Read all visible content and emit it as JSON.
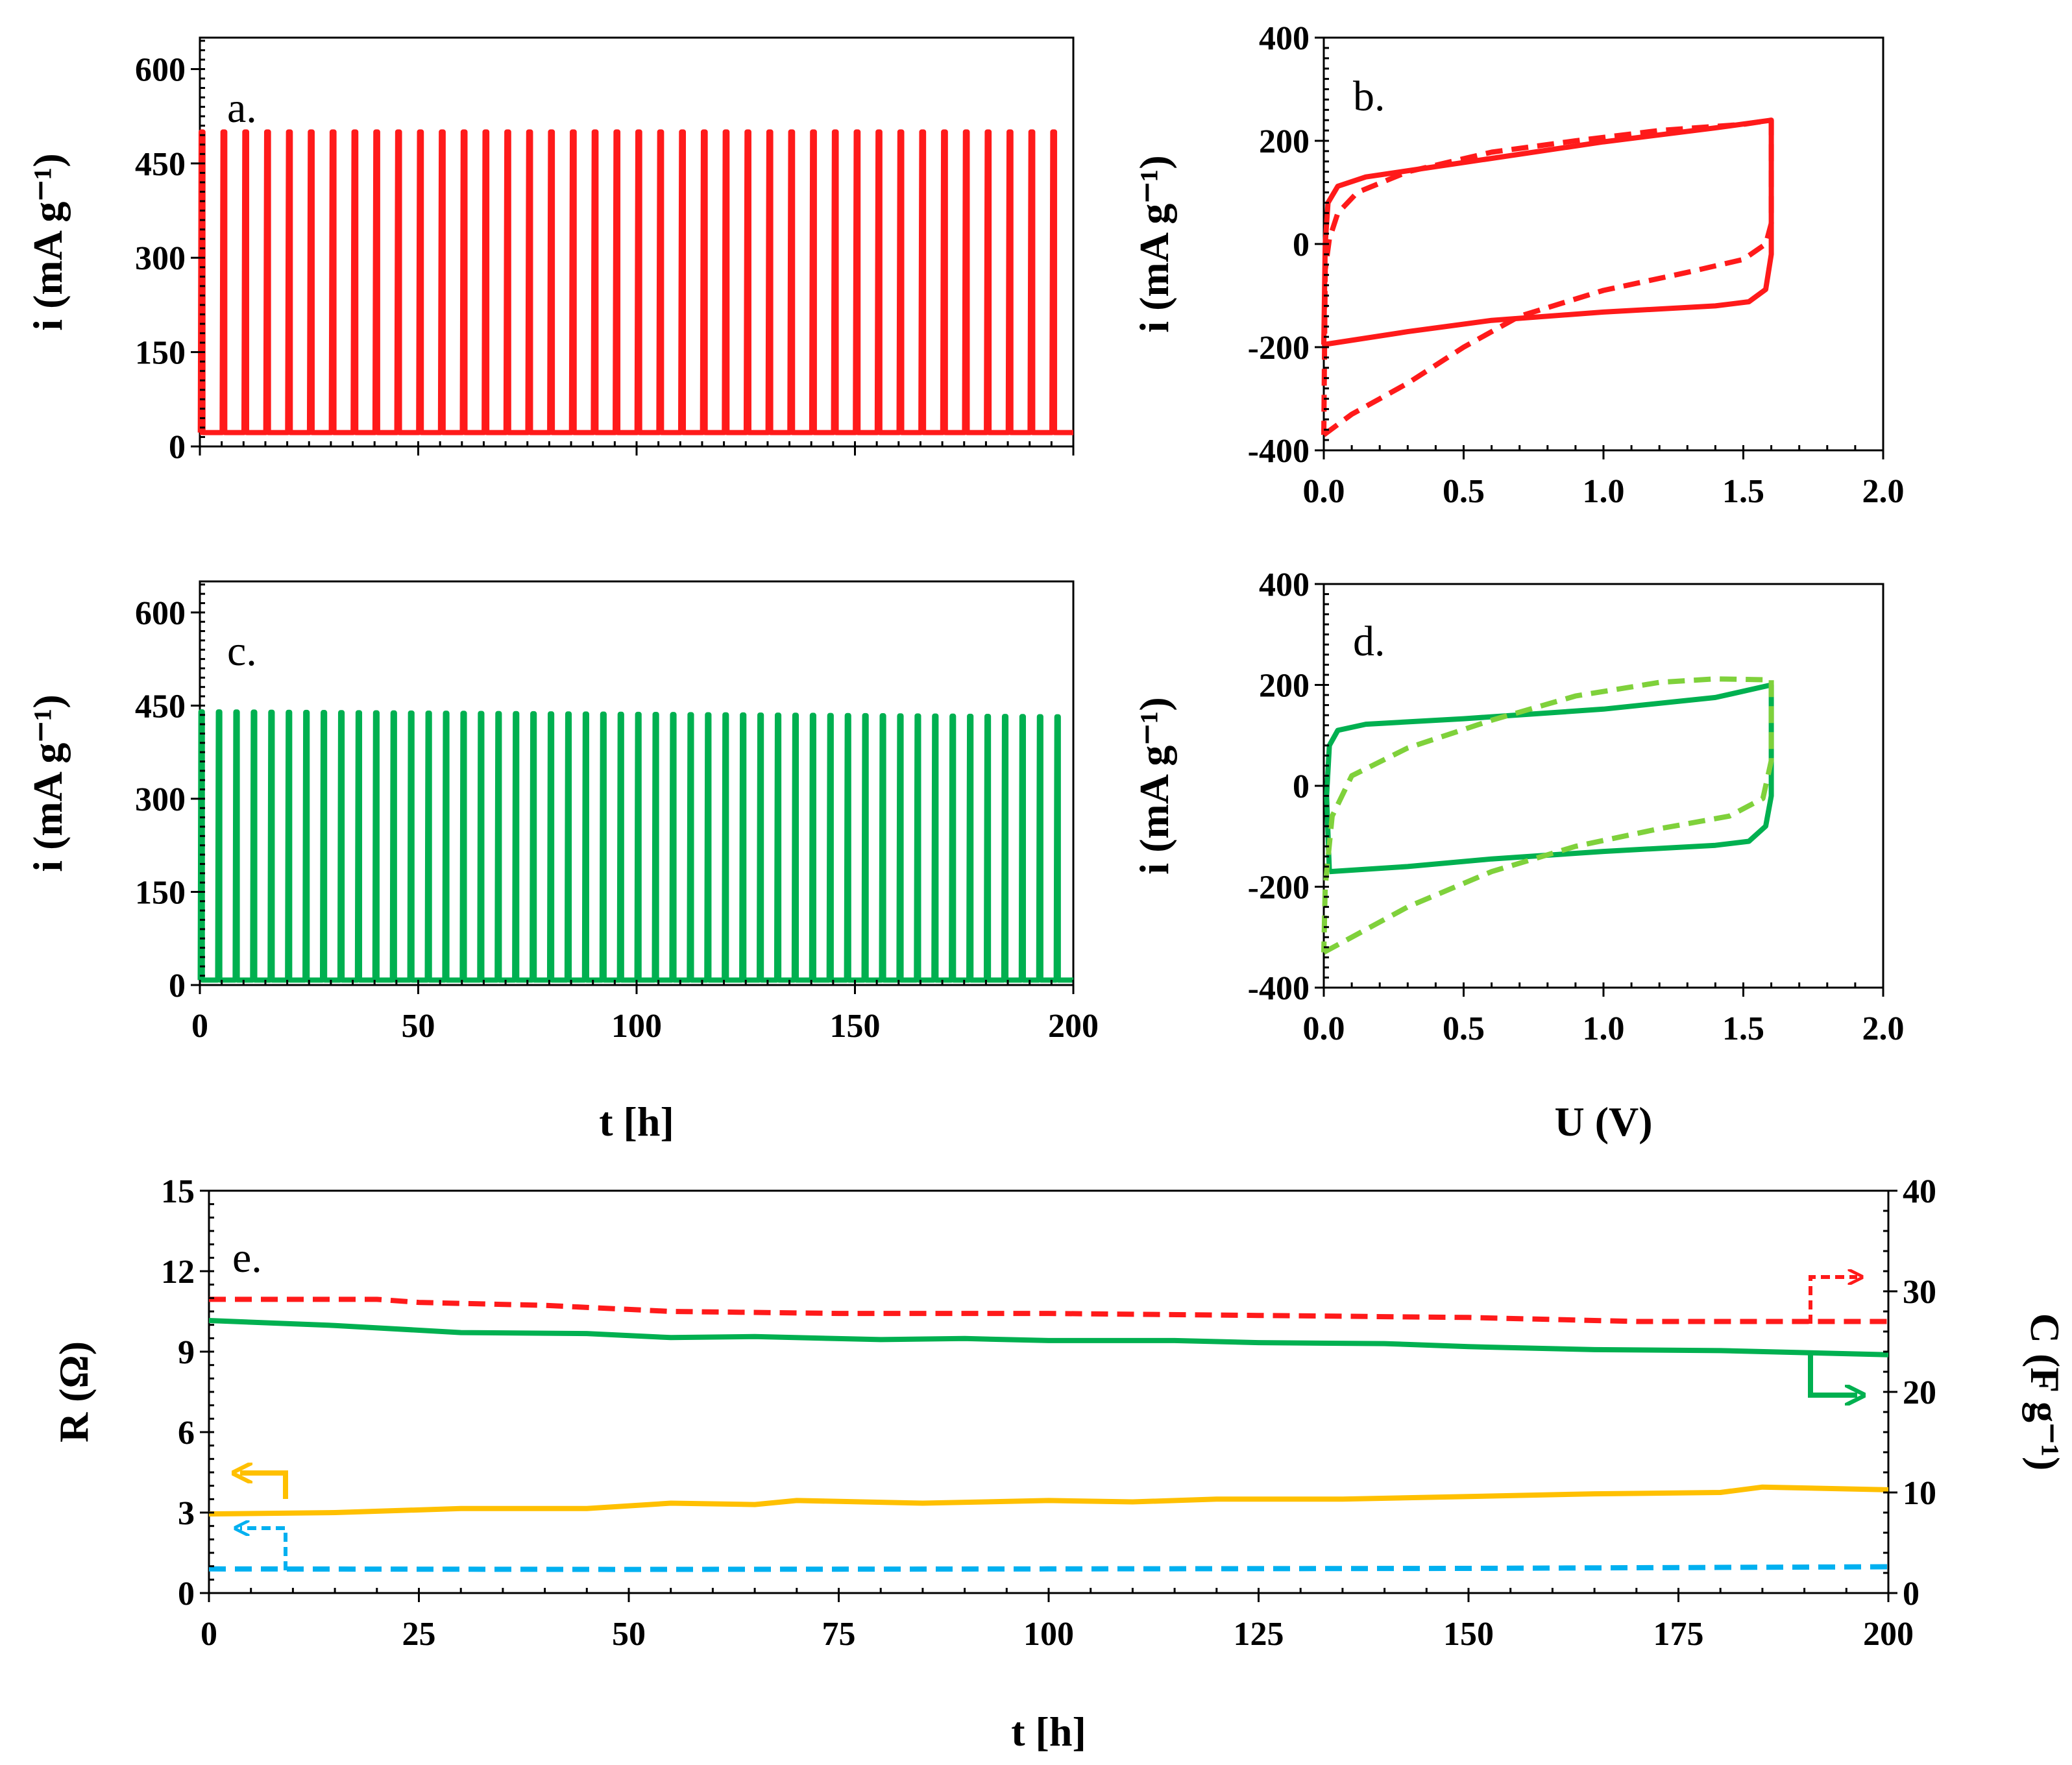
{
  "chart_data": [
    {
      "panel": "a.",
      "type": "line",
      "xlabel": "",
      "ylabel": "i (mA g⁻¹)",
      "xlim": [
        0,
        200
      ],
      "ylim": [
        0,
        650
      ],
      "xticks": [],
      "yticks": [
        "0",
        "150",
        "300",
        "450",
        "600"
      ],
      "color": "#ff1a1a",
      "series": [
        {
          "style": "solid",
          "waveform": {
            "pulses": 40,
            "high": 500,
            "low": 22,
            "t_start": 0,
            "t_end": 200
          }
        }
      ]
    },
    {
      "panel": "b.",
      "type": "line",
      "xlabel": "",
      "ylabel": "i (mA g⁻¹)",
      "xlim": [
        0,
        2.0
      ],
      "ylim": [
        -400,
        400
      ],
      "xticks": [
        "0.0",
        "0.5",
        "1.0",
        "1.5",
        "2.0"
      ],
      "yticks": [
        "-400",
        "-200",
        "0",
        "200",
        "400"
      ],
      "color": "#ff1a1a",
      "series": [
        {
          "style": "solid",
          "points": [
            [
              0.0,
              -195
            ],
            [
              0.3,
              -170
            ],
            [
              0.6,
              -148
            ],
            [
              1.0,
              -132
            ],
            [
              1.4,
              -120
            ],
            [
              1.52,
              -112
            ],
            [
              1.58,
              -88
            ],
            [
              1.6,
              -20
            ],
            [
              1.6,
              240
            ],
            [
              1.4,
              225
            ],
            [
              1.0,
              198
            ],
            [
              0.5,
              158
            ],
            [
              0.15,
              130
            ],
            [
              0.05,
              112
            ],
            [
              0.015,
              80
            ],
            [
              0.005,
              0
            ],
            [
              0.0,
              -195
            ]
          ]
        },
        {
          "style": "dashed",
          "points": [
            [
              0.0,
              -370
            ],
            [
              0.1,
              -330
            ],
            [
              0.3,
              -270
            ],
            [
              0.5,
              -200
            ],
            [
              0.7,
              -140
            ],
            [
              1.0,
              -90
            ],
            [
              1.3,
              -55
            ],
            [
              1.5,
              -30
            ],
            [
              1.58,
              0
            ],
            [
              1.6,
              40
            ],
            [
              1.6,
              240
            ],
            [
              1.5,
              232
            ],
            [
              1.2,
              220
            ],
            [
              0.9,
              200
            ],
            [
              0.6,
              178
            ],
            [
              0.3,
              140
            ],
            [
              0.12,
              100
            ],
            [
              0.05,
              60
            ],
            [
              0.02,
              10
            ],
            [
              0.005,
              -50
            ],
            [
              0.0,
              -370
            ]
          ]
        }
      ]
    },
    {
      "panel": "c.",
      "type": "line",
      "xlabel": "t [h]",
      "ylabel": "i (mA g⁻¹)",
      "xlim": [
        0,
        200
      ],
      "ylim": [
        0,
        650
      ],
      "xticks": [
        "0",
        "50",
        "100",
        "150",
        "200"
      ],
      "yticks": [
        "0",
        "150",
        "300",
        "450",
        "600"
      ],
      "color": "#00b050",
      "series": [
        {
          "style": "solid",
          "waveform": {
            "pulses": 50,
            "high_start": 440,
            "high_end": 432,
            "low": 8,
            "t_start": 0,
            "t_end": 200
          }
        }
      ]
    },
    {
      "panel": "d.",
      "type": "line",
      "xlabel": "U (V)",
      "ylabel": "i (mA g⁻¹)",
      "xlim": [
        0,
        2.0
      ],
      "ylim": [
        -400,
        400
      ],
      "xticks": [
        "0.0",
        "0.5",
        "1.0",
        "1.5",
        "2.0"
      ],
      "yticks": [
        "-400",
        "-200",
        "0",
        "200",
        "400"
      ],
      "series": [
        {
          "style": "solid",
          "color": "#00b050",
          "points": [
            [
              0.02,
              -170
            ],
            [
              0.3,
              -160
            ],
            [
              0.6,
              -145
            ],
            [
              1.0,
              -130
            ],
            [
              1.4,
              -118
            ],
            [
              1.52,
              -110
            ],
            [
              1.58,
              -80
            ],
            [
              1.6,
              -20
            ],
            [
              1.6,
              200
            ],
            [
              1.4,
              175
            ],
            [
              1.0,
              152
            ],
            [
              0.5,
              133
            ],
            [
              0.15,
              122
            ],
            [
              0.05,
              110
            ],
            [
              0.02,
              80
            ],
            [
              0.01,
              -20
            ],
            [
              0.02,
              -170
            ]
          ]
        },
        {
          "style": "dashed",
          "color": "#7fd13b",
          "points": [
            [
              0.0,
              -330
            ],
            [
              0.1,
              -300
            ],
            [
              0.3,
              -240
            ],
            [
              0.6,
              -170
            ],
            [
              0.9,
              -120
            ],
            [
              1.2,
              -85
            ],
            [
              1.45,
              -60
            ],
            [
              1.57,
              -25
            ],
            [
              1.6,
              50
            ],
            [
              1.6,
              210
            ],
            [
              1.4,
              212
            ],
            [
              1.2,
              205
            ],
            [
              0.9,
              178
            ],
            [
              0.6,
              130
            ],
            [
              0.3,
              75
            ],
            [
              0.1,
              20
            ],
            [
              0.03,
              -60
            ],
            [
              0.005,
              -200
            ],
            [
              0.0,
              -330
            ]
          ]
        }
      ]
    },
    {
      "panel": "e.",
      "type": "line",
      "xlabel": "t [h]",
      "ylabel": "R (Ω)",
      "y2label": "C (F g⁻¹)",
      "xlim": [
        0,
        200
      ],
      "ylim": [
        0,
        15
      ],
      "y2lim": [
        0,
        40
      ],
      "xticks": [
        "0",
        "25",
        "50",
        "75",
        "100",
        "125",
        "150",
        "175",
        "200"
      ],
      "yticks": [
        "0",
        "3",
        "6",
        "9",
        "12",
        "15"
      ],
      "y2ticks": [
        "0",
        "10",
        "20",
        "30",
        "40"
      ],
      "series": [
        {
          "style": "dashed",
          "color": "#ff1a1a",
          "axis": "right",
          "points": [
            [
              0,
              29.2
            ],
            [
              20,
              29.2
            ],
            [
              25,
              28.9
            ],
            [
              40,
              28.6
            ],
            [
              55,
              28.0
            ],
            [
              75,
              27.8
            ],
            [
              100,
              27.8
            ],
            [
              125,
              27.6
            ],
            [
              150,
              27.4
            ],
            [
              170,
              27.0
            ],
            [
              200,
              27.0
            ]
          ]
        },
        {
          "style": "solid",
          "color": "#00b050",
          "axis": "right",
          "points": [
            [
              0,
              27.1
            ],
            [
              15,
              26.6
            ],
            [
              30,
              25.9
            ],
            [
              45,
              25.8
            ],
            [
              55,
              25.4
            ],
            [
              65,
              25.5
            ],
            [
              80,
              25.2
            ],
            [
              90,
              25.3
            ],
            [
              100,
              25.1
            ],
            [
              115,
              25.1
            ],
            [
              125,
              24.9
            ],
            [
              140,
              24.8
            ],
            [
              150,
              24.5
            ],
            [
              165,
              24.2
            ],
            [
              180,
              24.1
            ],
            [
              200,
              23.7
            ]
          ]
        },
        {
          "style": "solid",
          "color": "#ffc000",
          "axis": "left",
          "points": [
            [
              0,
              2.95
            ],
            [
              15,
              3.0
            ],
            [
              30,
              3.15
            ],
            [
              45,
              3.15
            ],
            [
              55,
              3.35
            ],
            [
              65,
              3.3
            ],
            [
              70,
              3.45
            ],
            [
              85,
              3.35
            ],
            [
              100,
              3.45
            ],
            [
              110,
              3.4
            ],
            [
              120,
              3.5
            ],
            [
              135,
              3.5
            ],
            [
              150,
              3.6
            ],
            [
              165,
              3.7
            ],
            [
              180,
              3.75
            ],
            [
              185,
              3.95
            ],
            [
              200,
              3.85
            ]
          ]
        },
        {
          "style": "dashed",
          "color": "#00b0f0",
          "axis": "left",
          "points": [
            [
              0,
              0.9
            ],
            [
              50,
              0.88
            ],
            [
              100,
              0.9
            ],
            [
              150,
              0.92
            ],
            [
              200,
              0.98
            ]
          ]
        }
      ]
    }
  ]
}
